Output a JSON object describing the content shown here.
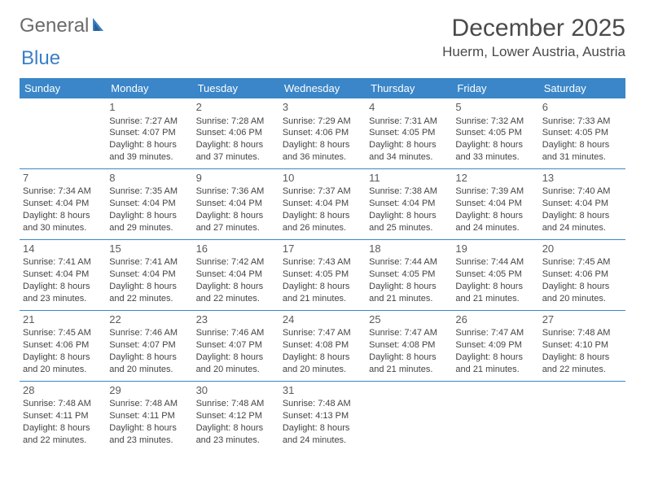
{
  "logo": {
    "part1": "General",
    "part2": "Blue"
  },
  "title": "December 2025",
  "location": "Huerm, Lower Austria, Austria",
  "colors": {
    "header_bg": "#3a86c8",
    "header_text": "#ffffff",
    "border": "#3a86c8",
    "logo_gray": "#6b6b6b",
    "logo_blue": "#3a7fc4",
    "text": "#444444"
  },
  "weekdays": [
    "Sunday",
    "Monday",
    "Tuesday",
    "Wednesday",
    "Thursday",
    "Friday",
    "Saturday"
  ],
  "weeks": [
    [
      null,
      {
        "n": "1",
        "sr": "Sunrise: 7:27 AM",
        "ss": "Sunset: 4:07 PM",
        "dl": "Daylight: 8 hours and 39 minutes."
      },
      {
        "n": "2",
        "sr": "Sunrise: 7:28 AM",
        "ss": "Sunset: 4:06 PM",
        "dl": "Daylight: 8 hours and 37 minutes."
      },
      {
        "n": "3",
        "sr": "Sunrise: 7:29 AM",
        "ss": "Sunset: 4:06 PM",
        "dl": "Daylight: 8 hours and 36 minutes."
      },
      {
        "n": "4",
        "sr": "Sunrise: 7:31 AM",
        "ss": "Sunset: 4:05 PM",
        "dl": "Daylight: 8 hours and 34 minutes."
      },
      {
        "n": "5",
        "sr": "Sunrise: 7:32 AM",
        "ss": "Sunset: 4:05 PM",
        "dl": "Daylight: 8 hours and 33 minutes."
      },
      {
        "n": "6",
        "sr": "Sunrise: 7:33 AM",
        "ss": "Sunset: 4:05 PM",
        "dl": "Daylight: 8 hours and 31 minutes."
      }
    ],
    [
      {
        "n": "7",
        "sr": "Sunrise: 7:34 AM",
        "ss": "Sunset: 4:04 PM",
        "dl": "Daylight: 8 hours and 30 minutes."
      },
      {
        "n": "8",
        "sr": "Sunrise: 7:35 AM",
        "ss": "Sunset: 4:04 PM",
        "dl": "Daylight: 8 hours and 29 minutes."
      },
      {
        "n": "9",
        "sr": "Sunrise: 7:36 AM",
        "ss": "Sunset: 4:04 PM",
        "dl": "Daylight: 8 hours and 27 minutes."
      },
      {
        "n": "10",
        "sr": "Sunrise: 7:37 AM",
        "ss": "Sunset: 4:04 PM",
        "dl": "Daylight: 8 hours and 26 minutes."
      },
      {
        "n": "11",
        "sr": "Sunrise: 7:38 AM",
        "ss": "Sunset: 4:04 PM",
        "dl": "Daylight: 8 hours and 25 minutes."
      },
      {
        "n": "12",
        "sr": "Sunrise: 7:39 AM",
        "ss": "Sunset: 4:04 PM",
        "dl": "Daylight: 8 hours and 24 minutes."
      },
      {
        "n": "13",
        "sr": "Sunrise: 7:40 AM",
        "ss": "Sunset: 4:04 PM",
        "dl": "Daylight: 8 hours and 24 minutes."
      }
    ],
    [
      {
        "n": "14",
        "sr": "Sunrise: 7:41 AM",
        "ss": "Sunset: 4:04 PM",
        "dl": "Daylight: 8 hours and 23 minutes."
      },
      {
        "n": "15",
        "sr": "Sunrise: 7:41 AM",
        "ss": "Sunset: 4:04 PM",
        "dl": "Daylight: 8 hours and 22 minutes."
      },
      {
        "n": "16",
        "sr": "Sunrise: 7:42 AM",
        "ss": "Sunset: 4:04 PM",
        "dl": "Daylight: 8 hours and 22 minutes."
      },
      {
        "n": "17",
        "sr": "Sunrise: 7:43 AM",
        "ss": "Sunset: 4:05 PM",
        "dl": "Daylight: 8 hours and 21 minutes."
      },
      {
        "n": "18",
        "sr": "Sunrise: 7:44 AM",
        "ss": "Sunset: 4:05 PM",
        "dl": "Daylight: 8 hours and 21 minutes."
      },
      {
        "n": "19",
        "sr": "Sunrise: 7:44 AM",
        "ss": "Sunset: 4:05 PM",
        "dl": "Daylight: 8 hours and 21 minutes."
      },
      {
        "n": "20",
        "sr": "Sunrise: 7:45 AM",
        "ss": "Sunset: 4:06 PM",
        "dl": "Daylight: 8 hours and 20 minutes."
      }
    ],
    [
      {
        "n": "21",
        "sr": "Sunrise: 7:45 AM",
        "ss": "Sunset: 4:06 PM",
        "dl": "Daylight: 8 hours and 20 minutes."
      },
      {
        "n": "22",
        "sr": "Sunrise: 7:46 AM",
        "ss": "Sunset: 4:07 PM",
        "dl": "Daylight: 8 hours and 20 minutes."
      },
      {
        "n": "23",
        "sr": "Sunrise: 7:46 AM",
        "ss": "Sunset: 4:07 PM",
        "dl": "Daylight: 8 hours and 20 minutes."
      },
      {
        "n": "24",
        "sr": "Sunrise: 7:47 AM",
        "ss": "Sunset: 4:08 PM",
        "dl": "Daylight: 8 hours and 20 minutes."
      },
      {
        "n": "25",
        "sr": "Sunrise: 7:47 AM",
        "ss": "Sunset: 4:08 PM",
        "dl": "Daylight: 8 hours and 21 minutes."
      },
      {
        "n": "26",
        "sr": "Sunrise: 7:47 AM",
        "ss": "Sunset: 4:09 PM",
        "dl": "Daylight: 8 hours and 21 minutes."
      },
      {
        "n": "27",
        "sr": "Sunrise: 7:48 AM",
        "ss": "Sunset: 4:10 PM",
        "dl": "Daylight: 8 hours and 22 minutes."
      }
    ],
    [
      {
        "n": "28",
        "sr": "Sunrise: 7:48 AM",
        "ss": "Sunset: 4:11 PM",
        "dl": "Daylight: 8 hours and 22 minutes."
      },
      {
        "n": "29",
        "sr": "Sunrise: 7:48 AM",
        "ss": "Sunset: 4:11 PM",
        "dl": "Daylight: 8 hours and 23 minutes."
      },
      {
        "n": "30",
        "sr": "Sunrise: 7:48 AM",
        "ss": "Sunset: 4:12 PM",
        "dl": "Daylight: 8 hours and 23 minutes."
      },
      {
        "n": "31",
        "sr": "Sunrise: 7:48 AM",
        "ss": "Sunset: 4:13 PM",
        "dl": "Daylight: 8 hours and 24 minutes."
      },
      null,
      null,
      null
    ]
  ]
}
